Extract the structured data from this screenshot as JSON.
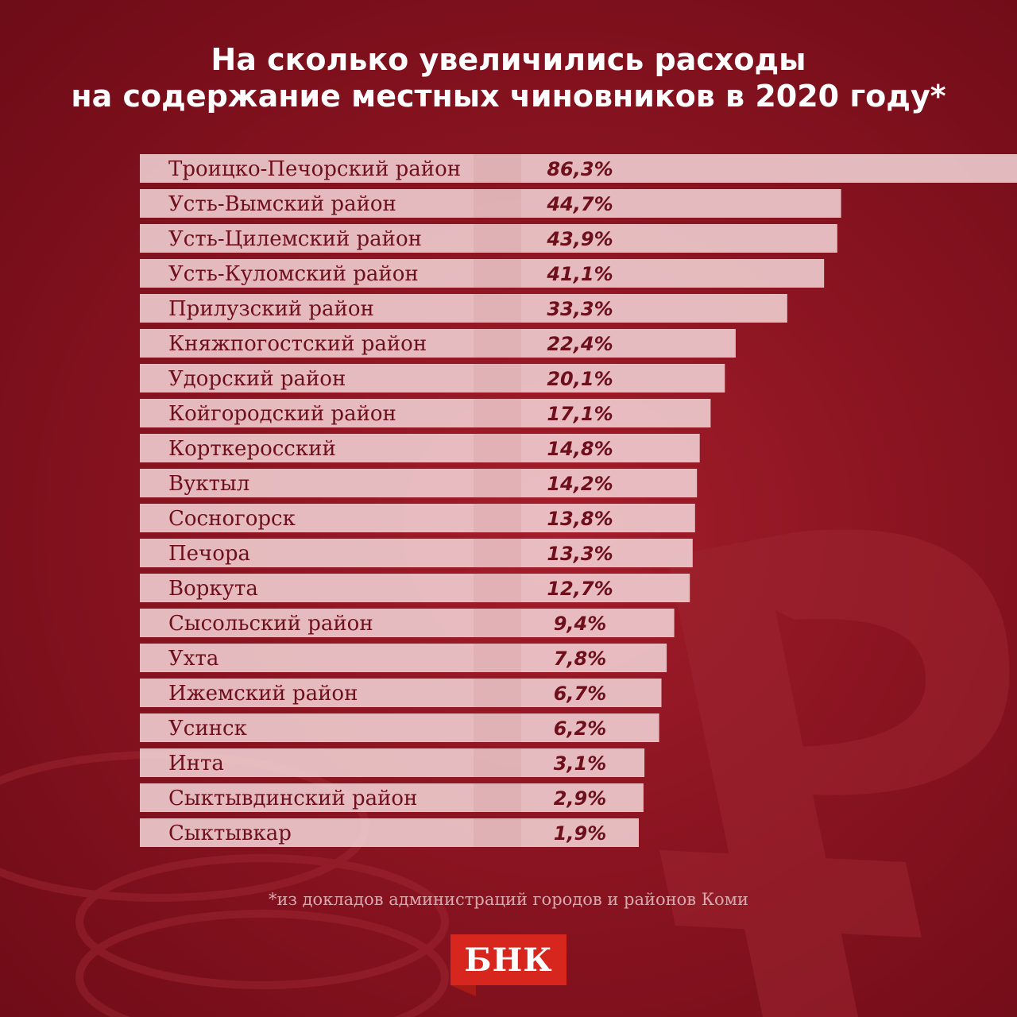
{
  "title": {
    "line1": "На сколько увеличились расходы",
    "line2": "на содержание местных чиновников в 2020 году*"
  },
  "footnote": "*из докладов администраций городов и районов Коми",
  "logo": {
    "text": "БНК"
  },
  "colors": {
    "background": "#8d1522",
    "bar": "#f3d6d8",
    "text": "#6e0f1c",
    "logo": "#d7261e"
  },
  "chart_data": {
    "type": "bar",
    "orientation": "horizontal",
    "title": "На сколько увеличились расходы на содержание местных чиновников в 2020 году*",
    "unit": "%",
    "categories": [
      "Троицко-Печорский район",
      "Усть-Вымский район",
      "Усть-Цилемский район",
      "Усть-Куломский район",
      "Прилузский район",
      "Княжпогостский район",
      "Удорский район",
      "Койгородский район",
      "Корткеросский",
      "Вуктыл",
      "Сосногорск",
      "Печора",
      "Воркута",
      "Сысольский район",
      "Ухта",
      "Ижемский район",
      "Усинск",
      "Инта",
      "Сыктывдинский район",
      "Сыктывкар"
    ],
    "values": [
      86.3,
      44.7,
      43.9,
      41.1,
      33.3,
      22.4,
      20.1,
      17.1,
      14.8,
      14.2,
      13.8,
      13.3,
      12.7,
      9.4,
      7.8,
      6.7,
      6.2,
      3.1,
      2.9,
      1.9
    ],
    "value_labels": [
      "86,3%",
      "44,7%",
      "43,9%",
      "41,1%",
      "33,3%",
      "22,4%",
      "20,1%",
      "17,1%",
      "14,8%",
      "14,2%",
      "13,8%",
      "13,3%",
      "12,7%",
      "9,4%",
      "7,8%",
      "6,7%",
      "6,2%",
      "3,1%",
      "2,9%",
      "1,9%"
    ],
    "xlabel": "",
    "ylabel": ""
  }
}
